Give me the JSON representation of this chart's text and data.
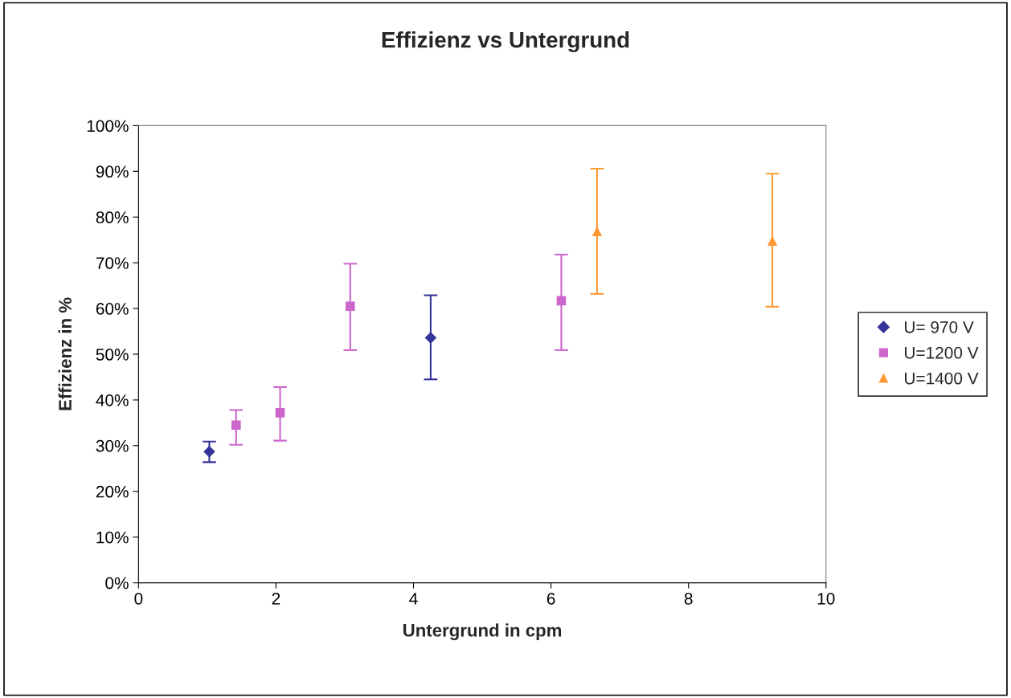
{
  "chart_data": {
    "type": "scatter",
    "title": "Effizienz vs Untergrund",
    "xlabel": "Untergrund in cpm",
    "ylabel": "Effizienz in %",
    "series": [
      {
        "name": "U= 970 V",
        "color": "#333399",
        "marker": "diamond",
        "x": [
          1.03,
          4.25
        ],
        "values": [
          28.7,
          53.6
        ],
        "errors": [
          [
            26.4,
            30.9
          ],
          [
            44.5,
            62.9
          ]
        ]
      },
      {
        "name": "U=1200 V",
        "color": "#cc66cc",
        "marker": "square",
        "x": [
          1.42,
          2.06,
          3.08,
          6.15
        ],
        "values": [
          34.5,
          37.2,
          60.5,
          61.7
        ],
        "errors": [
          [
            30.2,
            37.8
          ],
          [
            31.1,
            42.8
          ],
          [
            50.9,
            69.8
          ],
          [
            50.9,
            71.8
          ]
        ]
      },
      {
        "name": "U=1400 V",
        "color": "#ff9933",
        "marker": "triangle",
        "x": [
          6.67,
          9.22
        ],
        "values": [
          76.9,
          74.8
        ],
        "errors": [
          [
            63.2,
            90.6
          ],
          [
            60.4,
            89.5
          ]
        ]
      }
    ],
    "xlim": [
      0,
      10
    ],
    "xticks": [
      0,
      2,
      4,
      6,
      8,
      10
    ],
    "ylim": [
      0,
      100
    ],
    "yticks": [
      {
        "value": 0,
        "label": "0%"
      },
      {
        "value": 10,
        "label": "10%"
      },
      {
        "value": 20,
        "label": "20%"
      },
      {
        "value": 30,
        "label": "30%"
      },
      {
        "value": 40,
        "label": "40%"
      },
      {
        "value": 50,
        "label": "50%"
      },
      {
        "value": 60,
        "label": "60%"
      },
      {
        "value": 70,
        "label": "70%"
      },
      {
        "value": 80,
        "label": "80%"
      },
      {
        "value": 90,
        "label": "90%"
      },
      {
        "value": 100,
        "label": "100%"
      }
    ],
    "grid": false,
    "legend": "right"
  }
}
